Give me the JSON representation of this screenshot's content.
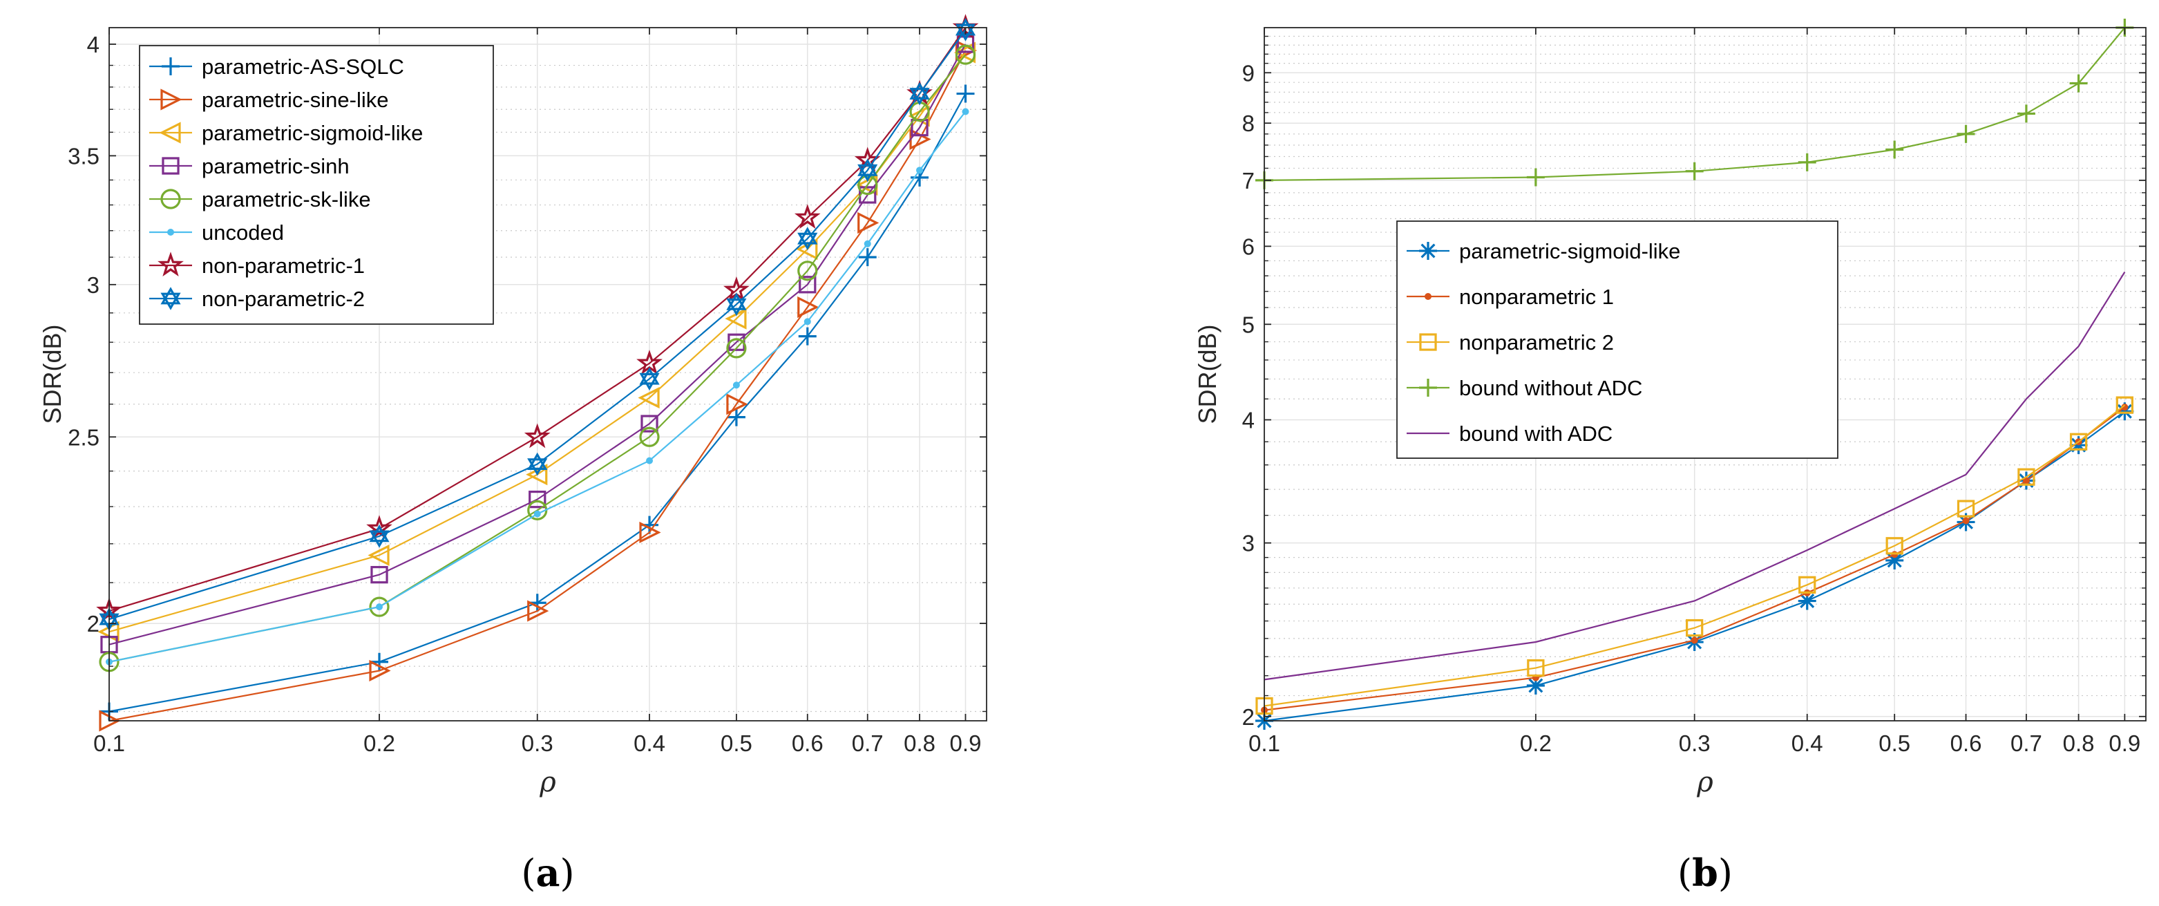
{
  "chart_data": [
    {
      "type": "line",
      "panel": "(a)",
      "panel_letter": "a",
      "xlabel": "ρ",
      "ylabel": "SDR(dB)",
      "xscale": "log",
      "yscale": "log",
      "xlim": [
        0.1,
        0.95
      ],
      "ylim": [
        1.78,
        4.08
      ],
      "xticks": [
        0.1,
        0.2,
        0.3,
        0.4,
        0.5,
        0.6,
        0.7,
        0.8,
        0.9
      ],
      "xticklabels": [
        "0.1",
        "0.2",
        "0.3",
        "0.4",
        "0.5",
        "0.6",
        "0.7",
        "0.8",
        "0.9"
      ],
      "yticks": [
        2,
        2.5,
        3,
        3.5,
        4
      ],
      "yticklabels": [
        "2",
        "2.5",
        "3",
        "3.5",
        "4"
      ],
      "grid": true,
      "legend_position": "top-left",
      "x": [
        0.1,
        0.2,
        0.3,
        0.4,
        0.5,
        0.6,
        0.7,
        0.8,
        0.9
      ],
      "series": [
        {
          "name": "parametric-AS-SQLC",
          "color": "#0072BD",
          "marker": "plus",
          "values": [
            1.8,
            1.91,
            2.05,
            2.25,
            2.56,
            2.82,
            3.1,
            3.41,
            3.77
          ]
        },
        {
          "name": "parametric-sine-like",
          "color": "#D95319",
          "marker": "triangle-right",
          "values": [
            1.78,
            1.89,
            2.03,
            2.23,
            2.6,
            2.92,
            3.23,
            3.57,
            3.97
          ]
        },
        {
          "name": "parametric-sigmoid-like",
          "color": "#EDB120",
          "marker": "triangle-left",
          "values": [
            1.98,
            2.17,
            2.39,
            2.62,
            2.88,
            3.13,
            3.38,
            3.67,
            3.96
          ]
        },
        {
          "name": "parametric-sinh",
          "color": "#7E2F8E",
          "marker": "square",
          "values": [
            1.95,
            2.12,
            2.32,
            2.54,
            2.8,
            3.0,
            3.34,
            3.62,
            4.0
          ]
        },
        {
          "name": "parametric-sk-like",
          "color": "#77AC30",
          "marker": "circle",
          "values": [
            1.91,
            2.04,
            2.29,
            2.5,
            2.78,
            3.05,
            3.38,
            3.69,
            3.95
          ]
        },
        {
          "name": "uncoded",
          "color": "#4DBEEE",
          "marker": "dot",
          "values": [
            1.91,
            2.04,
            2.28,
            2.43,
            2.66,
            2.87,
            3.15,
            3.44,
            3.69
          ]
        },
        {
          "name": "non-parametric-1",
          "color": "#A2142F",
          "marker": "pentagram",
          "values": [
            2.03,
            2.24,
            2.5,
            2.73,
            2.98,
            3.25,
            3.48,
            3.77,
            4.08
          ]
        },
        {
          "name": "non-parametric-2",
          "color": "#0072BD",
          "marker": "hexagram",
          "values": [
            2.01,
            2.22,
            2.42,
            2.68,
            2.93,
            3.17,
            3.44,
            3.77,
            4.07
          ]
        }
      ]
    },
    {
      "type": "line",
      "panel": "(b)",
      "panel_letter": "b",
      "xlabel": "ρ",
      "ylabel": "SDR(dB)",
      "xscale": "log",
      "yscale": "log",
      "xlim": [
        0.1,
        0.95
      ],
      "ylim": [
        1.98,
        10.0
      ],
      "xticks": [
        0.1,
        0.2,
        0.3,
        0.4,
        0.5,
        0.6,
        0.7,
        0.8,
        0.9
      ],
      "xticklabels": [
        "0.1",
        "0.2",
        "0.3",
        "0.4",
        "0.5",
        "0.6",
        "0.7",
        "0.8",
        "0.9"
      ],
      "yticks": [
        2,
        3,
        4,
        5,
        6,
        7,
        8,
        9
      ],
      "yticklabels": [
        "2",
        "3",
        "4",
        "5",
        "6",
        "7",
        "8",
        "9"
      ],
      "grid": true,
      "legend_position": "center-left",
      "x": [
        0.1,
        0.2,
        0.3,
        0.4,
        0.5,
        0.6,
        0.7,
        0.8,
        0.9
      ],
      "series": [
        {
          "name": "parametric-sigmoid-like",
          "color": "#0072BD",
          "marker": "asterisk",
          "values": [
            1.98,
            2.15,
            2.38,
            2.62,
            2.88,
            3.15,
            3.47,
            3.77,
            4.08
          ]
        },
        {
          "name": "nonparametric 1",
          "color": "#D95319",
          "marker": "dot",
          "values": [
            2.03,
            2.19,
            2.39,
            2.67,
            2.92,
            3.16,
            3.47,
            3.8,
            4.12
          ]
        },
        {
          "name": "nonparametric 2",
          "color": "#EDB120",
          "marker": "square",
          "values": [
            2.05,
            2.24,
            2.46,
            2.72,
            2.98,
            3.25,
            3.5,
            3.8,
            4.14
          ]
        },
        {
          "name": "bound without ADC",
          "color": "#77AC30",
          "marker": "plus",
          "values": [
            7.0,
            7.05,
            7.15,
            7.3,
            7.52,
            7.8,
            8.18,
            8.78,
            10.0
          ]
        },
        {
          "name": "bound with ADC",
          "color": "#7E2F8E",
          "marker": "none",
          "values": [
            2.18,
            2.38,
            2.62,
            2.95,
            3.25,
            3.52,
            4.2,
            4.75,
            5.65
          ]
        }
      ]
    }
  ]
}
